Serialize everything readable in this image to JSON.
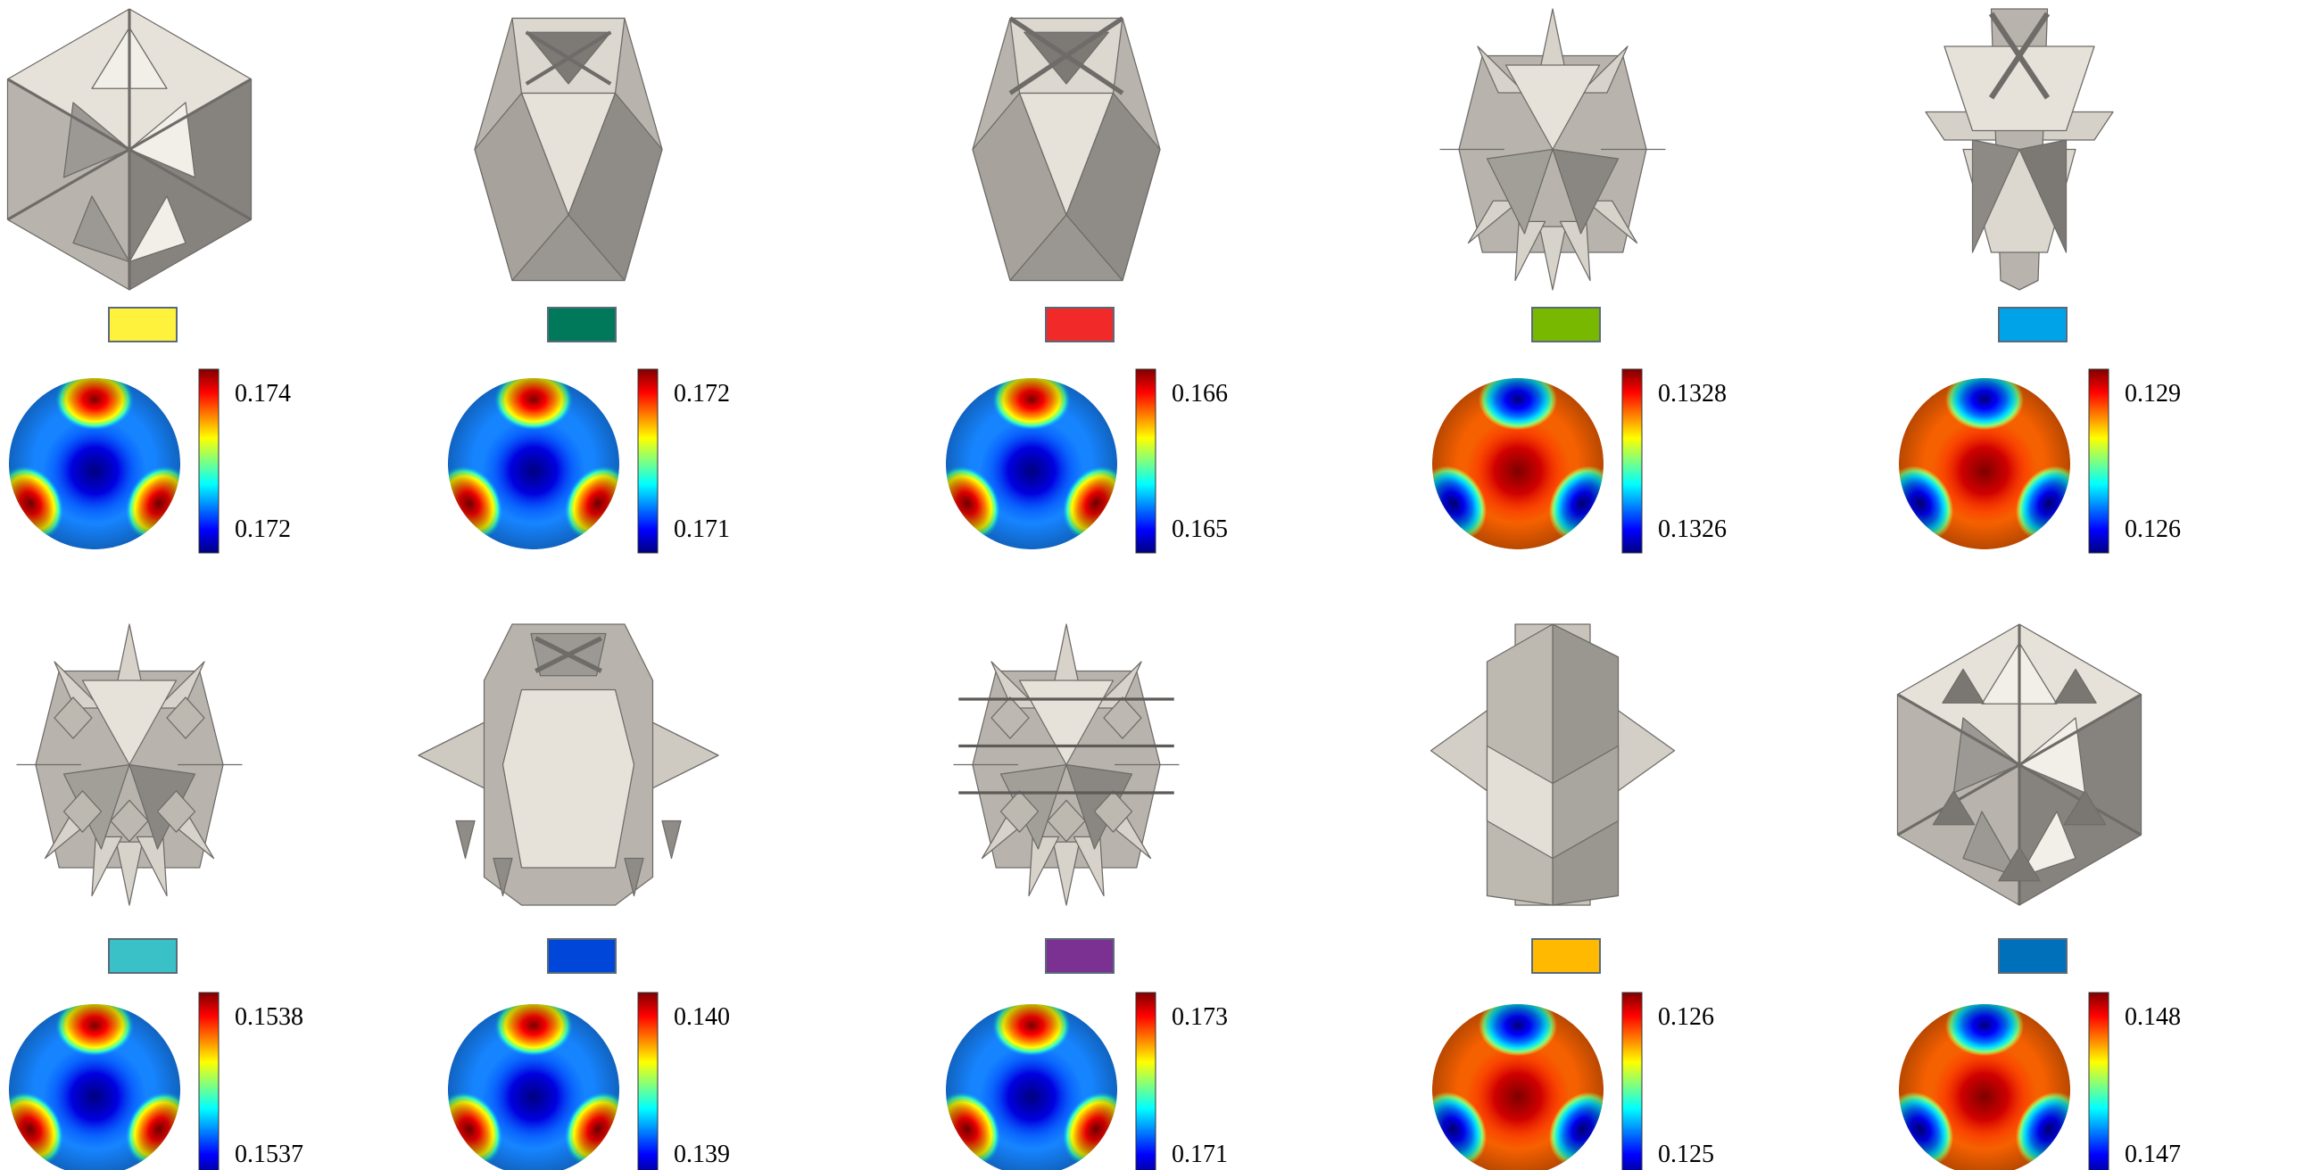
{
  "colormap": [
    "#00007f",
    "#0000ff",
    "#007fff",
    "#00ffff",
    "#7fff7f",
    "#ffff00",
    "#ff7f00",
    "#ff0000",
    "#7f0000"
  ],
  "panels": [
    {
      "shape": "cube-lattice",
      "swatch": "#fff23c",
      "pattern": "cool",
      "max": "0.174",
      "min": "0.172"
    },
    {
      "shape": "cuboctahedron-lattice",
      "swatch": "#00795a",
      "pattern": "cool",
      "max": "0.172",
      "min": "0.171"
    },
    {
      "shape": "cuboctahedron-twisted",
      "swatch": "#f12a29",
      "pattern": "cool",
      "max": "0.166",
      "min": "0.165"
    },
    {
      "shape": "spiky-lattice",
      "swatch": "#79b800",
      "pattern": "warm",
      "max": "0.1328",
      "min": "0.1326"
    },
    {
      "shape": "star-plates",
      "swatch": "#00a2e8",
      "pattern": "warm",
      "max": "0.129",
      "min": "0.126"
    },
    {
      "shape": "spiky-lattice-dense",
      "swatch": "#39c1c7",
      "pattern": "cool",
      "max": "0.1538",
      "min": "0.1537"
    },
    {
      "shape": "plate-cage",
      "swatch": "#0046d9",
      "pattern": "cool",
      "max": "0.140",
      "min": "0.139"
    },
    {
      "shape": "spiky-lattice-layered",
      "swatch": "#7b3192",
      "pattern": "cool",
      "max": "0.173",
      "min": "0.171"
    },
    {
      "shape": "cross-plates",
      "swatch": "#ffb900",
      "pattern": "warm",
      "max": "0.126",
      "min": "0.125"
    },
    {
      "shape": "cube-lattice-dense",
      "swatch": "#0070bb",
      "pattern": "warm",
      "max": "0.148",
      "min": "0.147"
    }
  ]
}
